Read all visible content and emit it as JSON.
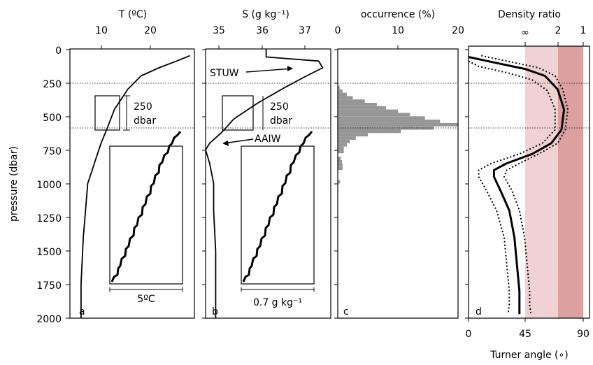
{
  "y_axis": {
    "label": "pressure (dbar)",
    "ticks": [
      "0",
      "250",
      "500",
      "750",
      "1000",
      "1250",
      "1500",
      "1750",
      "2000"
    ]
  },
  "panels": {
    "a": {
      "title": "T (ºC)",
      "ticks": [
        "10",
        "20"
      ],
      "letter": "a",
      "bracket": "250\ndbar",
      "scale": "5ºC"
    },
    "b": {
      "title": "S (g kg⁻¹)",
      "ticks": [
        "35",
        "36",
        "37"
      ],
      "letter": "b",
      "bracket": "250\ndbar",
      "scale": "0.7 g kg⁻¹",
      "annotations": [
        "STUW",
        "AAIW"
      ]
    },
    "c": {
      "title": "occurrence (%)",
      "ticks": [
        "0",
        "10",
        "20"
      ],
      "letter": "c"
    },
    "d": {
      "title": "Density ratio",
      "ticks_top": [
        "∞",
        "2",
        "1"
      ],
      "ticks_bottom": [
        "0",
        "45",
        "90"
      ],
      "xlabel": "Turner angle (∘)",
      "letter": "d",
      "colors": {
        "light_band": "#f0d2d2",
        "dark_band": "#dca0a0"
      }
    }
  },
  "chart_data": [
    {
      "panel": "a",
      "type": "line",
      "title": "T (ºC)",
      "ylabel": "pressure (dbar)",
      "xlim": [
        0,
        28
      ],
      "ylim": [
        2000,
        0
      ],
      "series": [
        {
          "x": [
            27,
            24,
            20,
            16,
            13,
            10,
            8.5,
            8,
            7,
            6,
            5,
            4,
            3.5,
            3,
            2.5,
            2.5
          ],
          "y": [
            50,
            90,
            140,
            200,
            300,
            450,
            580,
            620,
            700,
            800,
            900,
            1000,
            1200,
            1400,
            1750,
            2000
          ]
        }
      ]
    },
    {
      "panel": "b",
      "type": "line",
      "title": "S (g kg⁻¹)",
      "xlim": [
        34.3,
        37.4
      ],
      "ylim": [
        2000,
        0
      ],
      "series": [
        {
          "x": [
            35.8,
            35.8,
            37.1,
            37.2,
            36.8,
            36.3,
            35.6,
            35.0,
            34.7,
            34.4,
            34.3,
            34.4,
            34.5,
            34.5,
            34.55,
            34.55
          ],
          "y": [
            0,
            60,
            90,
            140,
            200,
            280,
            400,
            520,
            620,
            700,
            750,
            850,
            1000,
            1200,
            1500,
            2000
          ]
        }
      ]
    },
    {
      "panel": "c",
      "type": "bar",
      "title": "occurrence (%)",
      "xlim": [
        0,
        20
      ],
      "ylim": [
        2000,
        0
      ],
      "bin_tops": [
        275,
        300,
        325,
        350,
        375,
        400,
        425,
        450,
        475,
        500,
        525,
        550,
        575,
        600,
        625,
        650,
        675,
        700,
        725,
        750,
        800,
        825,
        850,
        875,
        975
      ],
      "values": [
        0.3,
        0.8,
        1.5,
        2.5,
        4.5,
        6.5,
        8,
        10,
        12,
        14.5,
        17,
        20,
        16,
        10.5,
        5,
        3,
        2,
        1.5,
        1,
        1,
        0.5,
        0.7,
        0.8,
        0.8,
        0.4
      ]
    },
    {
      "panel": "d",
      "type": "line",
      "title": "Density ratio",
      "xlabel": "Turner angle (∘)",
      "xlim": [
        0,
        95
      ],
      "ylim": [
        2000,
        0
      ],
      "series": [
        {
          "name": "mean",
          "x": [
            0,
            20,
            45,
            60,
            70,
            75,
            73,
            65,
            50,
            30,
            20,
            20,
            25,
            32,
            36,
            38,
            40,
            40,
            40
          ],
          "y": [
            60,
            100,
            150,
            200,
            300,
            450,
            600,
            700,
            780,
            850,
            900,
            950,
            1050,
            1200,
            1400,
            1600,
            1800,
            1900,
            1970
          ]
        },
        {
          "name": "upper",
          "x": [
            10,
            30,
            55,
            68,
            74,
            78,
            76,
            70,
            55,
            40,
            30,
            28,
            34,
            40,
            44,
            46,
            48,
            48,
            49
          ],
          "y": [
            50,
            90,
            140,
            200,
            300,
            450,
            600,
            700,
            780,
            850,
            900,
            950,
            1050,
            1200,
            1400,
            1600,
            1800,
            1900,
            1970
          ]
        },
        {
          "name": "lower",
          "x": [
            0,
            8,
            32,
            50,
            62,
            68,
            68,
            58,
            40,
            18,
            8,
            8,
            14,
            22,
            28,
            30,
            32,
            32,
            31
          ],
          "y": [
            90,
            130,
            180,
            230,
            310,
            450,
            600,
            700,
            780,
            850,
            900,
            950,
            1050,
            1200,
            1400,
            1600,
            1800,
            1900,
            1970
          ]
        }
      ]
    }
  ]
}
